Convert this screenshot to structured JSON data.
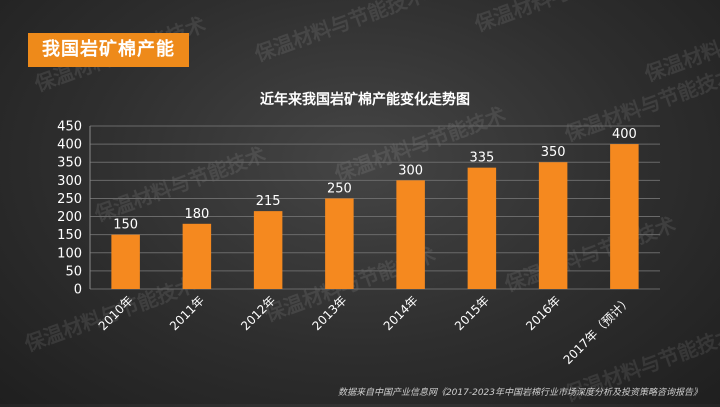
{
  "header": {
    "tag_label": "我国岩矿棉产能"
  },
  "watermark_text": "保温材料与节能技术",
  "footer": {
    "source_note": "数据来自中国产业信息网《2017-2023年中国岩棉行业市场深度分析及投资策略咨询报告》"
  },
  "colors": {
    "bar": "#f5891f",
    "axis_text": "#ffffff",
    "grid": "#6a6a6a",
    "tag_bg": "#ee8a1a"
  },
  "chart_data": {
    "type": "bar",
    "title": "近年来我国岩矿棉产能变化走势图",
    "categories": [
      "2010年",
      "2011年",
      "2012年",
      "2013年",
      "2014年",
      "2015年",
      "2016年",
      "2017年（预计）"
    ],
    "values": [
      150,
      180,
      215,
      250,
      300,
      335,
      350,
      400
    ],
    "value_labels": [
      "150",
      "180",
      "215",
      "250",
      "300",
      "335",
      "350",
      "400"
    ],
    "y_ticks": [
      "0",
      "50",
      "100",
      "150",
      "200",
      "250",
      "300",
      "350",
      "400",
      "450"
    ],
    "ylim": [
      0,
      450
    ],
    "xlabel": "",
    "ylabel": "",
    "grid": true
  }
}
